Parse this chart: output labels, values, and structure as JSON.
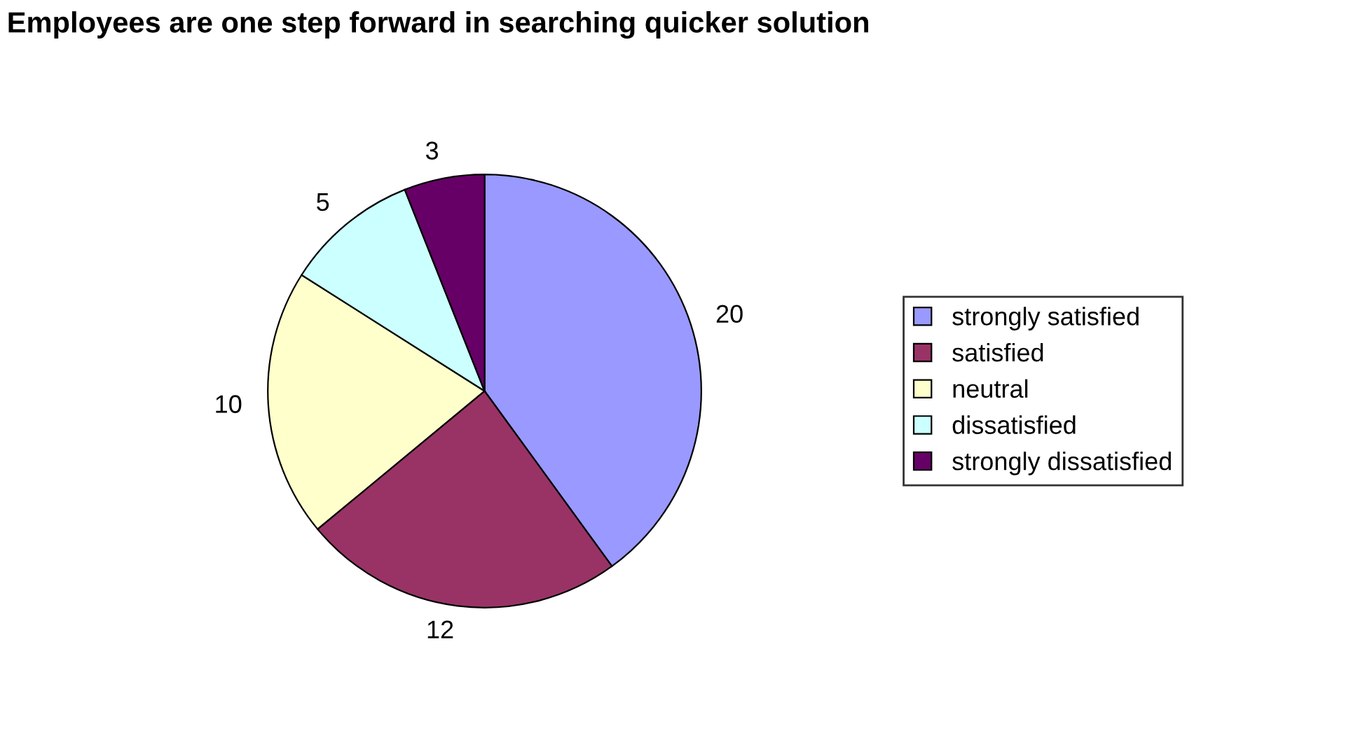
{
  "chart_data": {
    "type": "pie",
    "title": "Employees are one step forward in searching quicker solution",
    "categories": [
      "strongly satisfied",
      "satisfied",
      "neutral",
      "dissatisfied",
      "strongly dissatisfied"
    ],
    "values": [
      20,
      12,
      10,
      5,
      3
    ],
    "colors": [
      "#9999ff",
      "#993366",
      "#ffffcc",
      "#ccffff",
      "#660066"
    ],
    "data_labels": true,
    "legend": "right"
  }
}
